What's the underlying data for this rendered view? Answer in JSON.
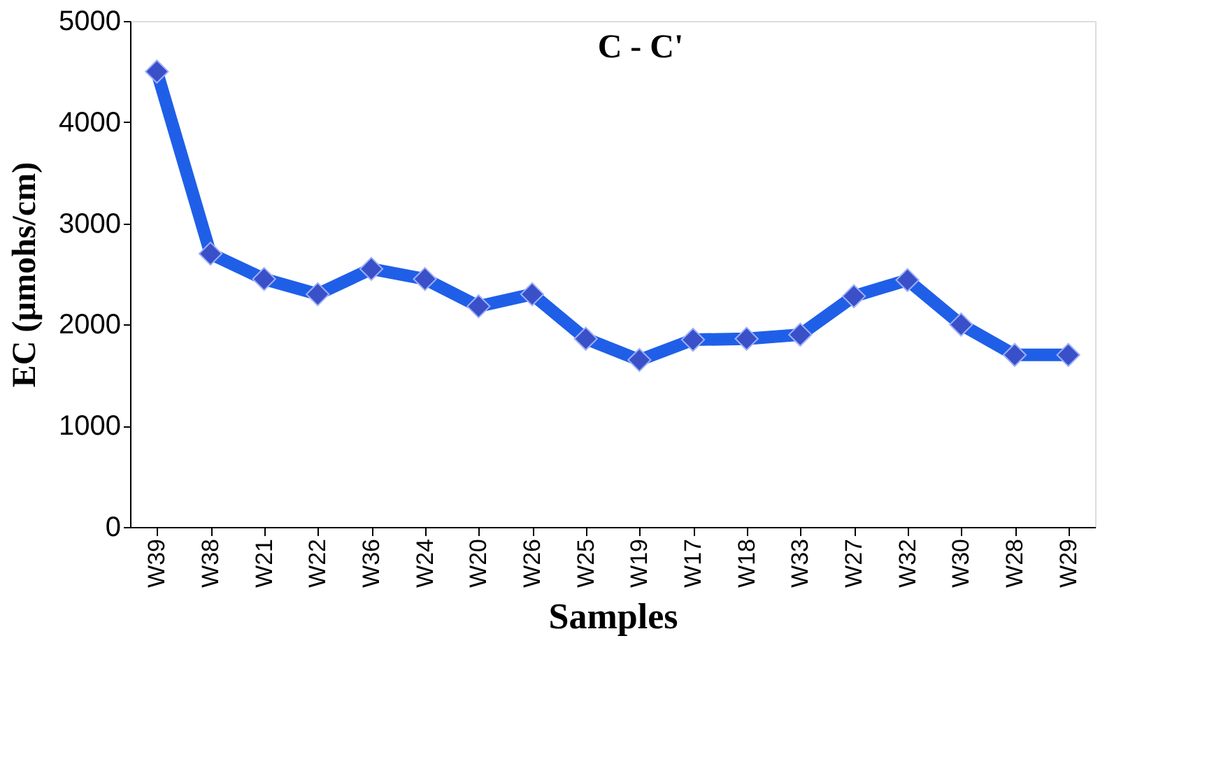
{
  "chart_data": {
    "type": "line",
    "title": "C - C'",
    "xlabel": "Samples",
    "ylabel": "EC (µmohs/cm)",
    "categories": [
      "W39",
      "W38",
      "W21",
      "W22",
      "W36",
      "W24",
      "W20",
      "W26",
      "W25",
      "W19",
      "W17",
      "W18",
      "W33",
      "W27",
      "W32",
      "W30",
      "W28",
      "W29"
    ],
    "series": [
      {
        "color": "#1f5fe8",
        "values": [
          4500,
          2700,
          2450,
          2300,
          2550,
          2450,
          2180,
          2300,
          1860,
          1650,
          1850,
          1860,
          1900,
          2280,
          2440,
          2000,
          1700,
          1700
        ]
      }
    ],
    "ylim": [
      0,
      5000
    ],
    "yticks": [
      0,
      1000,
      2000,
      3000,
      4000,
      5000
    ],
    "grid": false,
    "marker": "diamond",
    "line_style": "solid"
  }
}
